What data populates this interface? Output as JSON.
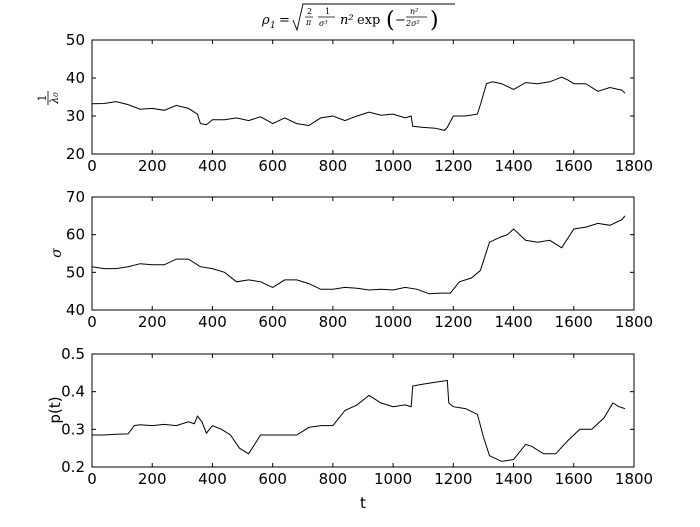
{
  "title": "ρ₁ = √(2/π · 1/σ³) n² exp(−n²/2σ²)",
  "chart_data": [
    {
      "type": "line",
      "xlabel": "",
      "ylabel": "1/λ₀",
      "xlim": [
        0,
        1800
      ],
      "ylim": [
        20,
        50
      ],
      "xticks": [
        0,
        200,
        400,
        600,
        800,
        1000,
        1200,
        1400,
        1600,
        1800
      ],
      "xtick_labels": [
        "0",
        "200",
        "400",
        "600",
        "800",
        "1000",
        "1200",
        "1400",
        "1600",
        "1800"
      ],
      "yticks": [
        20,
        30,
        40,
        50
      ],
      "ytick_labels": [
        "20",
        "30",
        "40",
        "50"
      ],
      "series": [
        {
          "x": [
            0,
            40,
            80,
            120,
            160,
            200,
            240,
            280,
            320,
            350,
            360,
            380,
            400,
            440,
            480,
            520,
            560,
            600,
            640,
            680,
            720,
            760,
            800,
            840,
            880,
            920,
            960,
            1000,
            1040,
            1060,
            1065,
            1100,
            1140,
            1170,
            1180,
            1200,
            1240,
            1280,
            1290,
            1310,
            1330,
            1360,
            1400,
            1440,
            1480,
            1520,
            1560,
            1580,
            1600,
            1640,
            1680,
            1720,
            1760,
            1770
          ],
          "y": [
            33.2,
            33.3,
            33.8,
            33.0,
            31.8,
            32.0,
            31.5,
            32.8,
            32.0,
            30.5,
            28.0,
            27.7,
            29.0,
            29.0,
            29.5,
            28.8,
            29.8,
            28.0,
            29.5,
            28.0,
            27.5,
            29.5,
            30.0,
            28.8,
            30.0,
            31.0,
            30.2,
            30.5,
            29.5,
            30.0,
            27.3,
            27.0,
            26.8,
            26.2,
            27.0,
            30.0,
            30.0,
            30.5,
            33.0,
            38.5,
            39.0,
            38.5,
            37.0,
            38.8,
            38.5,
            39.0,
            40.2,
            39.5,
            38.5,
            38.5,
            36.5,
            37.5,
            36.8,
            36.0
          ]
        }
      ]
    },
    {
      "type": "line",
      "xlabel": "",
      "ylabel": "σ",
      "xlim": [
        0,
        1800
      ],
      "ylim": [
        40,
        70
      ],
      "xticks": [
        0,
        200,
        400,
        600,
        800,
        1000,
        1200,
        1400,
        1600,
        1800
      ],
      "xtick_labels": [
        "0",
        "200",
        "400",
        "600",
        "800",
        "1000",
        "1200",
        "1400",
        "1600",
        "1800"
      ],
      "yticks": [
        40,
        50,
        60,
        70
      ],
      "ytick_labels": [
        "40",
        "50",
        "60",
        "70"
      ],
      "series": [
        {
          "x": [
            0,
            40,
            80,
            120,
            160,
            200,
            240,
            280,
            320,
            360,
            400,
            440,
            480,
            520,
            560,
            600,
            640,
            680,
            720,
            760,
            800,
            840,
            880,
            920,
            960,
            1000,
            1040,
            1080,
            1120,
            1160,
            1190,
            1220,
            1260,
            1290,
            1320,
            1360,
            1380,
            1400,
            1440,
            1480,
            1520,
            1560,
            1600,
            1640,
            1680,
            1720,
            1760,
            1770
          ],
          "y": [
            51.5,
            51.0,
            51.0,
            51.5,
            52.3,
            52.0,
            52.0,
            53.5,
            53.5,
            51.5,
            51.0,
            50.0,
            47.5,
            48.0,
            47.5,
            46.0,
            48.0,
            48.0,
            47.0,
            45.5,
            45.5,
            46.0,
            45.8,
            45.3,
            45.5,
            45.3,
            46.0,
            45.5,
            44.3,
            44.5,
            44.5,
            47.5,
            48.5,
            50.5,
            58.0,
            59.5,
            60.0,
            61.5,
            58.5,
            58.0,
            58.5,
            56.5,
            61.5,
            62.0,
            63.0,
            62.5,
            64.0,
            65.0
          ]
        }
      ]
    },
    {
      "type": "line",
      "xlabel": "t",
      "ylabel": "p(t)",
      "xlim": [
        0,
        1800
      ],
      "ylim": [
        0.2,
        0.5
      ],
      "xticks": [
        0,
        200,
        400,
        600,
        800,
        1000,
        1200,
        1400,
        1600,
        1800
      ],
      "xtick_labels": [
        "0",
        "200",
        "400",
        "600",
        "800",
        "1000",
        "1200",
        "1400",
        "1600",
        "1800"
      ],
      "yticks": [
        0.2,
        0.3,
        0.4,
        0.5
      ],
      "ytick_labels": [
        "0.2",
        "0.3",
        "0.4",
        "0.5"
      ],
      "series": [
        {
          "x": [
            0,
            40,
            80,
            120,
            140,
            160,
            200,
            240,
            280,
            320,
            340,
            350,
            365,
            380,
            400,
            430,
            460,
            490,
            520,
            540,
            560,
            600,
            640,
            680,
            720,
            760,
            800,
            840,
            880,
            920,
            960,
            1000,
            1040,
            1060,
            1065,
            1100,
            1140,
            1180,
            1185,
            1200,
            1240,
            1280,
            1300,
            1320,
            1360,
            1400,
            1440,
            1460,
            1500,
            1540,
            1580,
            1620,
            1660,
            1700,
            1730,
            1750,
            1770
          ],
          "y": [
            0.285,
            0.285,
            0.287,
            0.288,
            0.31,
            0.312,
            0.31,
            0.313,
            0.31,
            0.32,
            0.315,
            0.335,
            0.32,
            0.29,
            0.31,
            0.3,
            0.285,
            0.25,
            0.235,
            0.26,
            0.285,
            0.285,
            0.285,
            0.285,
            0.305,
            0.31,
            0.31,
            0.35,
            0.365,
            0.39,
            0.37,
            0.36,
            0.365,
            0.36,
            0.415,
            0.42,
            0.425,
            0.43,
            0.37,
            0.36,
            0.355,
            0.34,
            0.28,
            0.23,
            0.215,
            0.22,
            0.26,
            0.255,
            0.235,
            0.235,
            0.27,
            0.3,
            0.3,
            0.33,
            0.37,
            0.36,
            0.355
          ]
        }
      ]
    }
  ]
}
